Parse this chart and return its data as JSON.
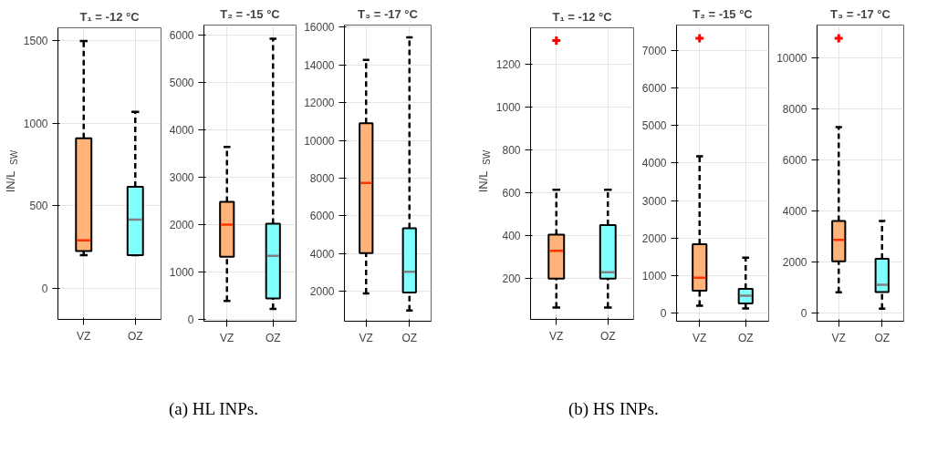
{
  "chart_data": [
    {
      "type": "box",
      "title": "T₁ = -12 °C",
      "ylabel": "IN/L$_{SW}$",
      "categories": [
        "VZ",
        "OZ"
      ],
      "colors": [
        "#ffb27a",
        "#80ffff"
      ],
      "ylim": [
        -190,
        1580
      ],
      "yticks": [
        0,
        500,
        1000,
        1500
      ],
      "grid": true,
      "annotations": [
        "(a) HL INPs."
      ],
      "boxes": [
        {
          "low": 200,
          "q1": 225,
          "median": 290,
          "q3": 910,
          "high": 1500
        },
        {
          "low": 200,
          "q1": 200,
          "median": 415,
          "q3": 615,
          "high": 1070
        }
      ]
    },
    {
      "type": "box",
      "title": "T₂ = -15 °C",
      "categories": [
        "VZ",
        "OZ"
      ],
      "colors": [
        "#ffb27a",
        "#80ffff"
      ],
      "ylim": [
        -30,
        6220
      ],
      "yticks": [
        0,
        1000,
        2000,
        3000,
        4000,
        5000,
        6000
      ],
      "grid": true,
      "boxes": [
        {
          "low": 400,
          "q1": 1330,
          "median": 2010,
          "q3": 2490,
          "high": 3650
        },
        {
          "low": 230,
          "q1": 450,
          "median": 1350,
          "q3": 2030,
          "high": 5930
        }
      ]
    },
    {
      "type": "box",
      "title": "T₃ = -17 °C",
      "categories": [
        "VZ",
        "OZ"
      ],
      "colors": [
        "#ffb27a",
        "#80ffff"
      ],
      "ylim": [
        430,
        16100
      ],
      "yticks": [
        2000,
        4000,
        6000,
        8000,
        10000,
        12000,
        14000,
        16000
      ],
      "grid": true,
      "boxes": [
        {
          "low": 1900,
          "q1": 4030,
          "median": 7750,
          "q3": 10900,
          "high": 14250
        },
        {
          "low": 1000,
          "q1": 1950,
          "median": 3050,
          "q3": 5350,
          "high": 15450
        }
      ]
    },
    {
      "type": "box",
      "title": "T₁ = -12 °C",
      "ylabel": "IN/L$_{SW}$",
      "categories": [
        "VZ",
        "OZ"
      ],
      "colors": [
        "#ffb27a",
        "#80ffff"
      ],
      "ylim": [
        10,
        1370
      ],
      "yticks": [
        200,
        400,
        600,
        800,
        1000,
        1200
      ],
      "grid": true,
      "annotations": [
        "(b) HS INPs."
      ],
      "boxes": [
        {
          "low": 65,
          "q1": 200,
          "median": 330,
          "q3": 405,
          "high": 615,
          "outliers": [
            1310
          ]
        },
        {
          "low": 65,
          "q1": 200,
          "median": 230,
          "q3": 450,
          "high": 615
        }
      ]
    },
    {
      "type": "box",
      "title": "T₂ = -15 °C",
      "categories": [
        "VZ",
        "OZ"
      ],
      "colors": [
        "#ffb27a",
        "#80ffff"
      ],
      "ylim": [
        -210,
        7670
      ],
      "yticks": [
        0,
        1000,
        2000,
        3000,
        4000,
        5000,
        6000,
        7000
      ],
      "grid": true,
      "boxes": [
        {
          "low": 200,
          "q1": 600,
          "median": 950,
          "q3": 1840,
          "high": 4180,
          "outliers": [
            7320
          ]
        },
        {
          "low": 130,
          "q1": 260,
          "median": 470,
          "q3": 650,
          "high": 1480
        }
      ]
    },
    {
      "type": "box",
      "title": "T₃ = -17 °C",
      "categories": [
        "VZ",
        "OZ"
      ],
      "colors": [
        "#ffb27a",
        "#80ffff"
      ],
      "ylim": [
        -310,
        11300
      ],
      "yticks": [
        0,
        2000,
        4000,
        6000,
        8000,
        10000
      ],
      "grid": true,
      "boxes": [
        {
          "low": 820,
          "q1": 2040,
          "median": 2880,
          "q3": 3620,
          "high": 7300,
          "outliers": [
            10780
          ]
        },
        {
          "low": 180,
          "q1": 830,
          "median": 1120,
          "q3": 2140,
          "high": 3620
        }
      ]
    }
  ]
}
